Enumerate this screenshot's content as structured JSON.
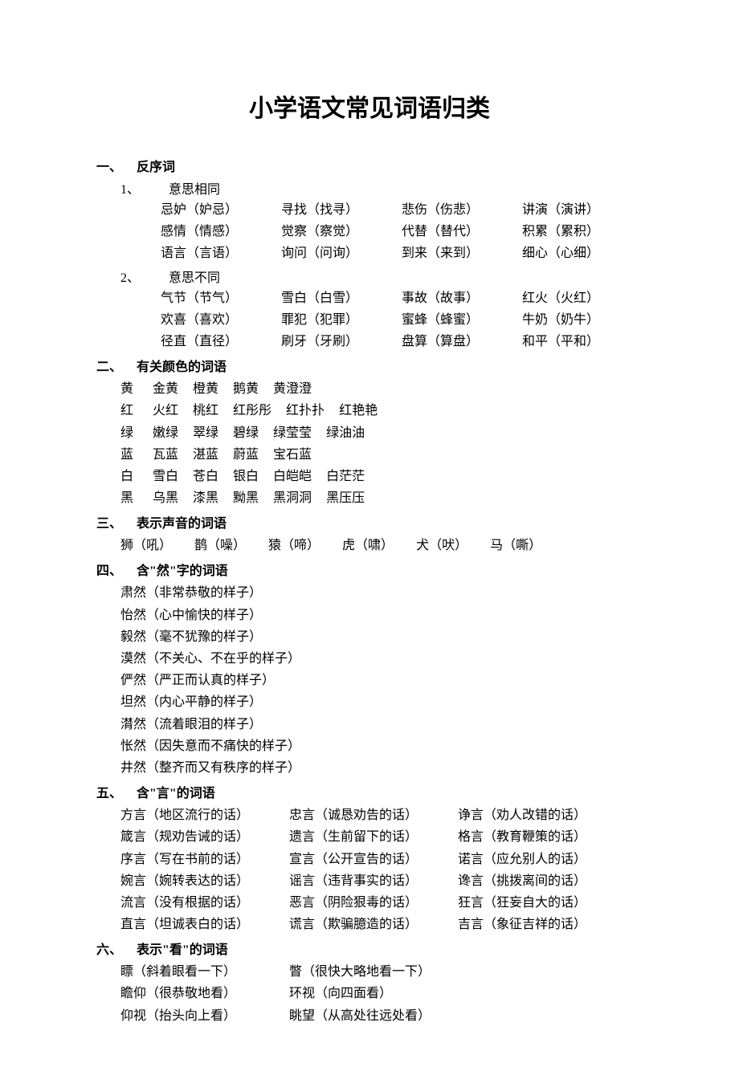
{
  "title": "小学语文常见词语归类",
  "sections": {
    "s1": {
      "num": "一、",
      "title": "反序词",
      "sub1": {
        "num": "1、",
        "title": "意思相同"
      },
      "r11": {
        "c1": "忌妒（妒忌）",
        "c2": "寻找（找寻）",
        "c3": "悲伤（伤悲）",
        "c4": "讲演（演讲）"
      },
      "r12": {
        "c1": "感情（情感）",
        "c2": "觉察（察觉）",
        "c3": "代替（替代）",
        "c4": "积累（累积）"
      },
      "r13": {
        "c1": "语言（言语）",
        "c2": "询问（问询）",
        "c3": "到来（来到）",
        "c4": "细心（心细）"
      },
      "sub2": {
        "num": "2、",
        "title": "意思不同"
      },
      "r21": {
        "c1": "气节（节气）",
        "c2": "雪白（白雪）",
        "c3": "事故（故事）",
        "c4": "红火（火红）"
      },
      "r22": {
        "c1": "欢喜（喜欢）",
        "c2": "罪犯（犯罪）",
        "c3": "蜜蜂（蜂蜜）",
        "c4": "牛奶（奶牛）"
      },
      "r23": {
        "c1": "径直（直径）",
        "c2": "刷牙（牙刷）",
        "c3": "盘算（算盘）",
        "c4": "和平（平和）"
      }
    },
    "s2": {
      "num": "二、",
      "title": "有关颜色的词语",
      "rows": {
        "r1": {
          "key": "黄",
          "v1": "金黄",
          "v2": "橙黄",
          "v3": "鹅黄",
          "v4": "黄澄澄",
          "v5": ""
        },
        "r2": {
          "key": "红",
          "v1": "火红",
          "v2": "桃红",
          "v3": "红彤彤",
          "v4": "红扑扑",
          "v5": "红艳艳"
        },
        "r3": {
          "key": "绿",
          "v1": "嫩绿",
          "v2": "翠绿",
          "v3": "碧绿",
          "v4": "绿莹莹",
          "v5": "绿油油"
        },
        "r4": {
          "key": "蓝",
          "v1": "瓦蓝",
          "v2": "湛蓝",
          "v3": "蔚蓝",
          "v4": "宝石蓝",
          "v5": ""
        },
        "r5": {
          "key": "白",
          "v1": "雪白",
          "v2": "苍白",
          "v3": "银白",
          "v4": "白皑皑",
          "v5": "白茫茫"
        },
        "r6": {
          "key": "黑",
          "v1": "乌黑",
          "v2": "漆黑",
          "v3": "黝黑",
          "v4": "黑洞洞",
          "v5": "黑压压"
        }
      }
    },
    "s3": {
      "num": "三、",
      "title": "表示声音的词语",
      "items": {
        "i1": "狮（吼）",
        "i2": "鹊（噪）",
        "i3": "猿（啼）",
        "i4": "虎（啸）",
        "i5": "犬（吠）",
        "i6": "马（嘶）"
      }
    },
    "s4": {
      "num": "四、",
      "title": "含\"然\"字的词语",
      "items": {
        "i1": "肃然（非常恭敬的样子）",
        "i2": "怡然（心中愉快的样子）",
        "i3": "毅然（毫不犹豫的样子）",
        "i4": "漠然（不关心、不在乎的样子）",
        "i5": "俨然（严正而认真的样子）",
        "i6": "坦然（内心平静的样子）",
        "i7": "潸然（流着眼泪的样子）",
        "i8": "怅然（因失意而不痛快的样子）",
        "i9": "井然（整齐而又有秩序的样子）"
      }
    },
    "s5": {
      "num": "五、",
      "title": "含\"言\"的词语",
      "r1": {
        "c1": "方言（地区流行的话）",
        "c2": "忠言（诚恳劝告的话）",
        "c3": "诤言（劝人改错的话）"
      },
      "r2": {
        "c1": "箴言（规劝告诫的话）",
        "c2": "遗言（生前留下的话）",
        "c3": "格言（教育鞭策的话）"
      },
      "r3": {
        "c1": "序言（写在书前的话）",
        "c2": "宣言（公开宣告的话）",
        "c3": "诺言（应允别人的话）"
      },
      "r4": {
        "c1": "婉言（婉转表达的话）",
        "c2": "谣言（违背事实的话）",
        "c3": "谗言（挑拨离间的话）"
      },
      "r5": {
        "c1": "流言（没有根据的话）",
        "c2": "恶言（阴险狠毒的话）",
        "c3": "狂言（狂妄自大的话）"
      },
      "r6": {
        "c1": "直言（坦诚表白的话）",
        "c2": "谎言（欺骗臆造的话）",
        "c3": "吉言（象征吉祥的话）"
      }
    },
    "s6": {
      "num": "六、",
      "title": "表示\"看\"的词语",
      "r1": {
        "c1": "瞟（斜着眼看一下）",
        "c2": "瞥（很快大略地看一下）"
      },
      "r2": {
        "c1": "瞻仰（很恭敬地看）",
        "c2": "环视（向四面看）"
      },
      "r3": {
        "c1": "仰视（抬头向上看）",
        "c2": "眺望（从高处往远处看）"
      }
    }
  }
}
